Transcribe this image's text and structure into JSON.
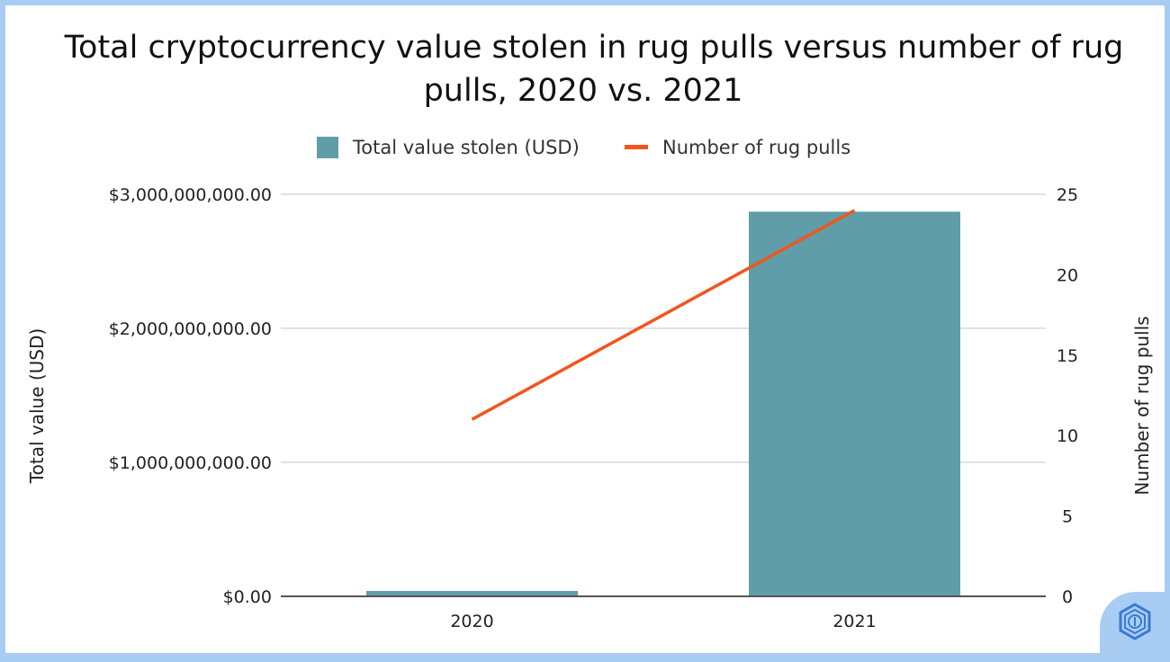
{
  "chart_data": {
    "type": "bar",
    "title_line1": "Total cryptocurrency value stolen in rug pulls versus number of rug",
    "title_line2": "pulls, 2020 vs. 2021",
    "categories": [
      "2020",
      "2021"
    ],
    "series": [
      {
        "name": "Total value stolen (USD)",
        "type": "bar",
        "axis": "left",
        "values": [
          40000000,
          2870000000
        ],
        "color": "#5f9da8"
      },
      {
        "name": "Number of rug pulls",
        "type": "line",
        "axis": "right",
        "values": [
          11,
          24
        ],
        "color": "#f0561d"
      }
    ],
    "y_left": {
      "label": "Total value (USD)",
      "range": [
        0,
        3000000000
      ],
      "ticks": [
        0,
        1000000000,
        2000000000,
        3000000000
      ],
      "tick_labels": [
        "$0.00",
        "$1,000,000,000.00",
        "$2,000,000,000.00",
        "$3,000,000,000.00"
      ]
    },
    "y_right": {
      "label": "Number of rug pulls",
      "range": [
        0,
        25
      ],
      "ticks": [
        0,
        5,
        10,
        15,
        20,
        25
      ],
      "tick_labels": [
        "0",
        "5",
        "10",
        "15",
        "20",
        "25"
      ]
    },
    "grid": true,
    "legend_position": "top-center"
  },
  "colors": {
    "bar": "#5f9da8",
    "line": "#f0561d",
    "grid": "#d9d9d9",
    "axis": "#555555",
    "frame": "#a9cdf2",
    "badge_icon": "#3a78d8"
  },
  "badge": {
    "icon": "hexagon-logo-icon"
  }
}
